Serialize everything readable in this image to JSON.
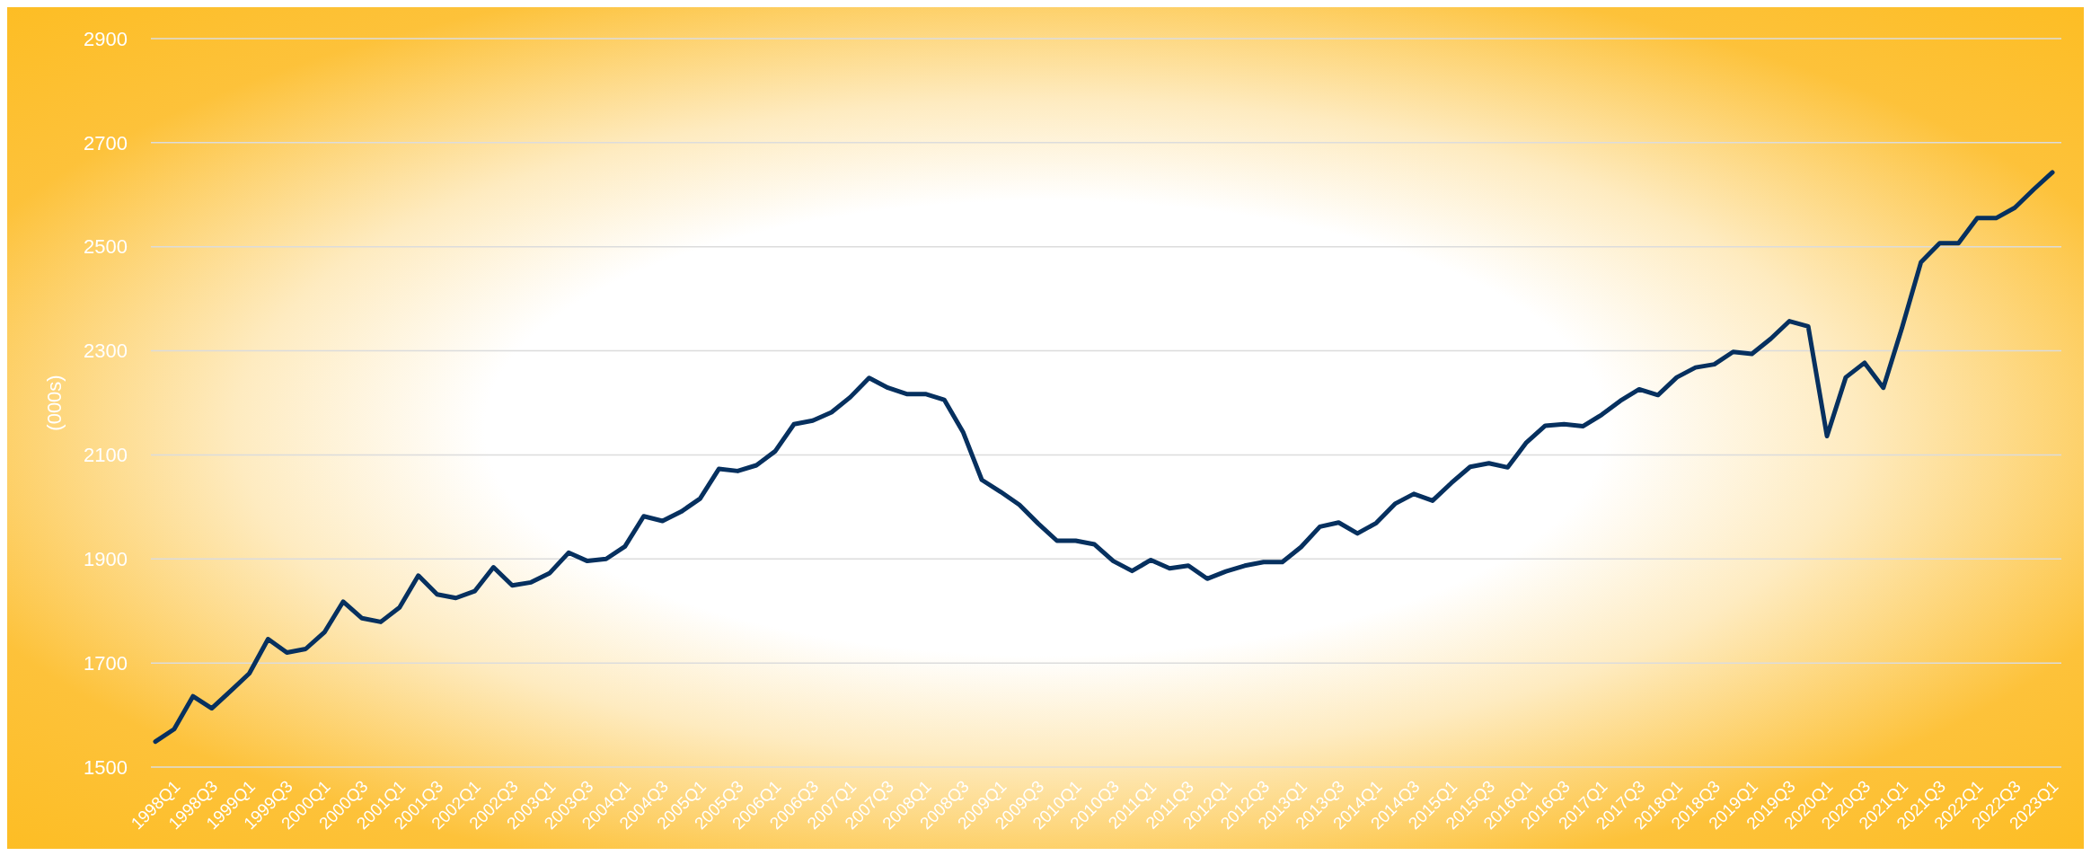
{
  "chart_data": {
    "type": "line",
    "ylabel": "(000s)",
    "categories": [
      "1998Q1",
      null,
      "1998Q3",
      null,
      "1999Q1",
      null,
      "1999Q3",
      null,
      "2000Q1",
      null,
      "2000Q3",
      null,
      "2001Q1",
      null,
      "2001Q3",
      null,
      "2002Q1",
      null,
      "2002Q3",
      null,
      "2003Q1",
      null,
      "2003Q3",
      null,
      "2004Q1",
      null,
      "2004Q3",
      null,
      "2005Q1",
      null,
      "2005Q3",
      null,
      "2006Q1",
      null,
      "2006Q3",
      null,
      "2007Q1",
      null,
      "2007Q3",
      null,
      "2008Q1",
      null,
      "2008Q3",
      null,
      "2009Q1",
      null,
      "2009Q3",
      null,
      "2010Q1",
      null,
      "2010Q3",
      null,
      "2011Q1",
      null,
      "2011Q3",
      null,
      "2012Q1",
      null,
      "2012Q3",
      null,
      "2013Q1",
      null,
      "2013Q3",
      null,
      "2014Q1",
      null,
      "2014Q3",
      null,
      "2015Q1",
      null,
      "2015Q3",
      null,
      "2016Q1",
      null,
      "2016Q3",
      null,
      "2017Q1",
      null,
      "2017Q3",
      null,
      "2018Q1",
      null,
      "2018Q3",
      null,
      "2019Q1",
      null,
      "2019Q3",
      null,
      "2020Q1",
      null,
      "2020Q3",
      null,
      "2021Q1",
      null,
      "2021Q3",
      null,
      "2022Q1",
      null,
      "2022Q3",
      null,
      "2023Q1",
      null
    ],
    "series": [
      {
        "color": "#06305f",
        "values": [
          1549,
          1573,
          1636,
          1613,
          1646,
          1680,
          1746,
          1720,
          1727,
          1759,
          1818,
          1786,
          1779,
          1807,
          1868,
          1832,
          1825,
          1838,
          1884,
          1849,
          1855,
          1873,
          1912,
          1896,
          1900,
          1924,
          1982,
          1973,
          1991,
          2016,
          2073,
          2069,
          2080,
          2107,
          2159,
          2166,
          2182,
          2211,
          2248,
          2229,
          2217,
          2217,
          2206,
          2144,
          2052,
          2029,
          2004,
          1968,
          1935,
          1935,
          1928,
          1896,
          1877,
          1898,
          1882,
          1887,
          1862,
          1876,
          1887,
          1894,
          1894,
          1923,
          1962,
          1970,
          1949,
          1969,
          2006,
          2025,
          2012,
          2046,
          2077,
          2084,
          2076,
          2124,
          2156,
          2159,
          2155,
          2177,
          2204,
          2226,
          2215,
          2249,
          2268,
          2274,
          2298,
          2294,
          2323,
          2357,
          2347,
          2136,
          2249,
          2277,
          2229,
          2345,
          2470,
          2507,
          2507,
          2555,
          2555,
          2575,
          2610,
          2643
        ]
      }
    ],
    "ylim": [
      1500,
      2900
    ],
    "yticks": [
      1500,
      1700,
      1900,
      2100,
      2300,
      2500,
      2700,
      2900
    ],
    "grid": "y",
    "marker": "none",
    "line_style": "solid"
  }
}
